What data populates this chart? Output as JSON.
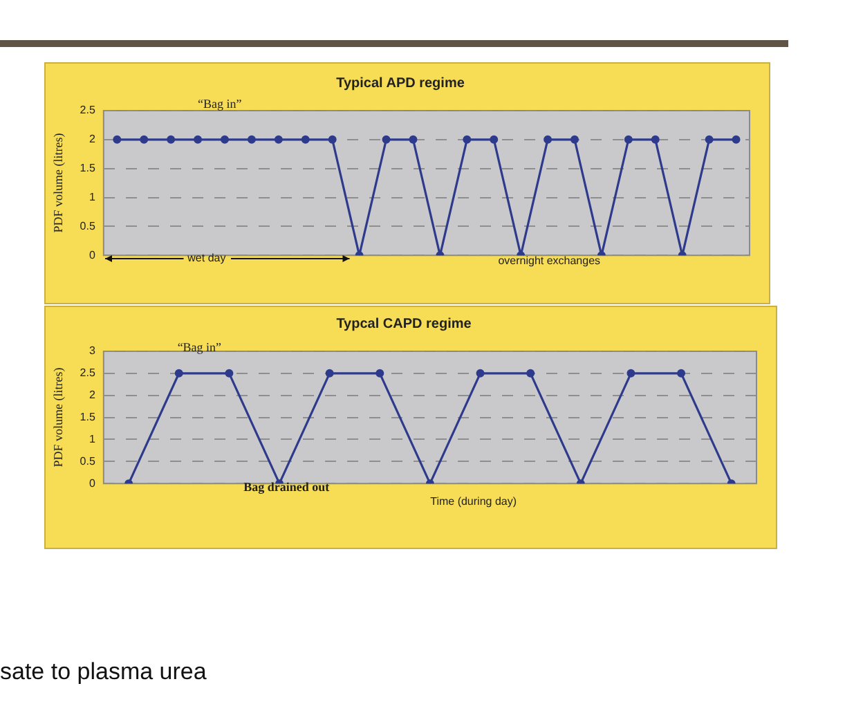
{
  "chart_data": [
    {
      "type": "line",
      "title": "Typical APD regime",
      "ylabel": "PDF volume (litres)",
      "categories": [
        null,
        null,
        null,
        null,
        null,
        null,
        null,
        null,
        null,
        null,
        null,
        null,
        null,
        null,
        null,
        null,
        null,
        null,
        null,
        null,
        null,
        null,
        null,
        null
      ],
      "values": [
        2,
        2,
        2,
        2,
        2,
        2,
        2,
        2,
        2,
        0,
        2,
        2,
        0,
        2,
        2,
        0,
        2,
        2,
        0,
        2,
        2,
        0,
        2,
        2
      ],
      "color": "#2e3a8c",
      "ylim": [
        0,
        2.5
      ],
      "yticks": [
        0,
        0.5,
        1,
        1.5,
        2,
        2.5
      ],
      "grid": "y",
      "marker": "circle",
      "annotations": [
        "“Bag in”",
        "wet day",
        "overnight exchanges"
      ]
    },
    {
      "type": "line",
      "title": "Typcal CAPD regime",
      "ylabel": "PDF volume (litres)",
      "xlabel": "Time (during day)",
      "categories": [
        null,
        null,
        null,
        null,
        null,
        null,
        null,
        null,
        null,
        null,
        null,
        null,
        null
      ],
      "values": [
        0,
        2.5,
        2.5,
        0,
        2.5,
        2.5,
        0,
        2.5,
        2.5,
        0,
        2.5,
        2.5,
        0
      ],
      "color": "#2e3a8c",
      "ylim": [
        0,
        3
      ],
      "yticks": [
        0,
        0.5,
        1,
        1.5,
        2,
        2.5,
        3
      ],
      "grid": "y",
      "marker": "circle",
      "annotations": [
        "“Bag in”",
        "Bag drained out",
        "sate to plasma urea"
      ]
    }
  ]
}
